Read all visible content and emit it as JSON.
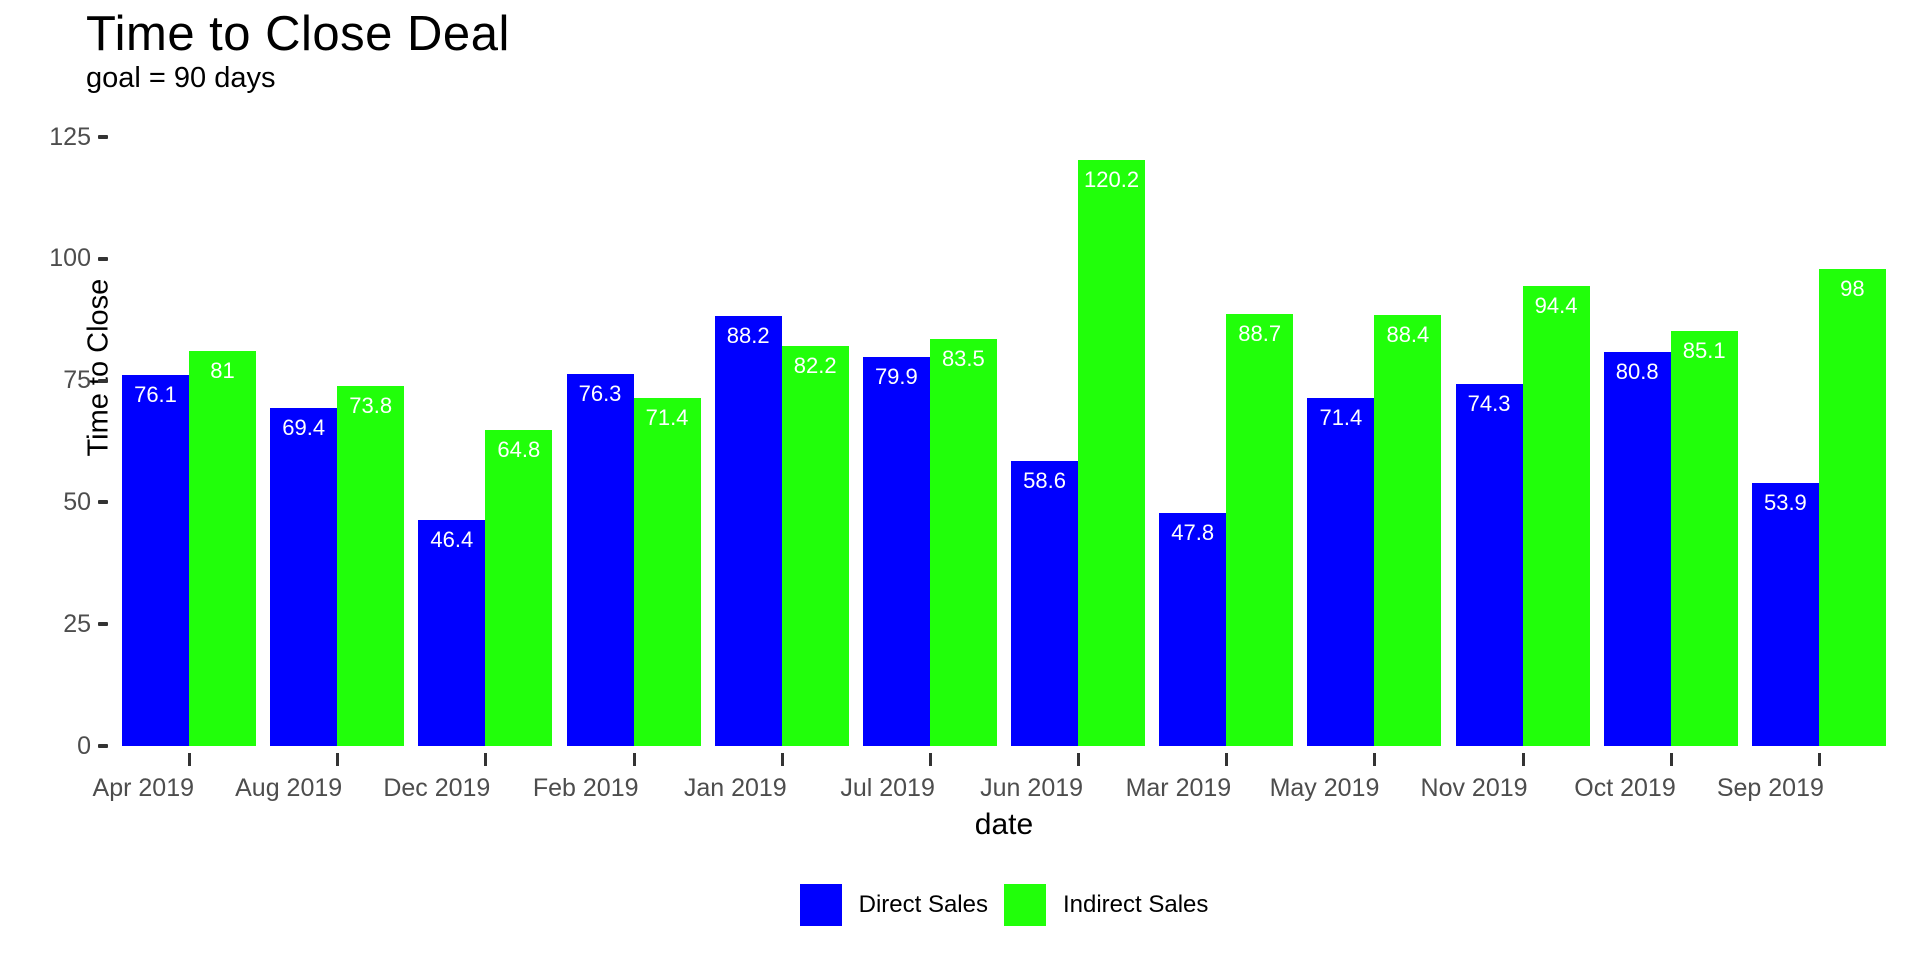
{
  "chart_data": {
    "type": "bar",
    "title": "Time to Close Deal",
    "subtitle": "goal = 90 days",
    "xlabel": "date",
    "ylabel": "Time to Close",
    "ylim": [
      0,
      125
    ],
    "yticks": [
      0,
      25,
      50,
      75,
      100,
      125
    ],
    "grid": false,
    "legend_position": "bottom",
    "value_label_color": "#ffffff",
    "categories": [
      "Apr 2019",
      "Aug 2019",
      "Dec 2019",
      "Feb 2019",
      "Jan 2019",
      "Jul 2019",
      "Jun 2019",
      "Mar 2019",
      "May 2019",
      "Nov 2019",
      "Oct 2019",
      "Sep 2019"
    ],
    "series": [
      {
        "name": "Direct Sales",
        "color": "#0000ff",
        "values": [
          76.1,
          69.4,
          46.4,
          76.3,
          88.2,
          79.9,
          58.6,
          47.8,
          71.4,
          74.3,
          80.8,
          53.9
        ]
      },
      {
        "name": "Indirect Sales",
        "color": "#21ff0a",
        "values": [
          81,
          73.8,
          64.8,
          71.4,
          82.2,
          83.5,
          120.2,
          88.7,
          88.4,
          94.4,
          85.1,
          98
        ]
      }
    ]
  }
}
